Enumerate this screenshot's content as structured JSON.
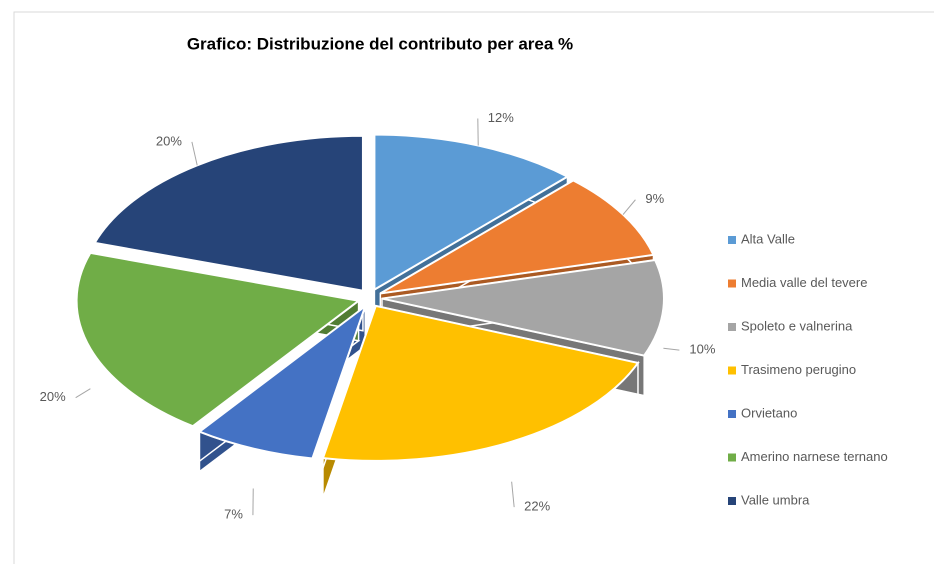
{
  "chart_data": {
    "type": "pie",
    "title": "Grafico: Distribuzione del contributo per area %",
    "categories": [
      "Alta Valle",
      "Media valle del tevere",
      "Spoleto e valnerina",
      "Trasimeno perugino",
      "Orvietano",
      "Amerino narnese ternano",
      "Valle umbra"
    ],
    "values": [
      12,
      9,
      10,
      22,
      7,
      20,
      20
    ],
    "value_labels": [
      "12%",
      "9%",
      "10%",
      "22%",
      "7%",
      "20%",
      "20%"
    ],
    "colors": [
      "#5b9bd5",
      "#ed7d31",
      "#a5a5a5",
      "#ffc000",
      "#4472c4",
      "#70ad47",
      "#264478"
    ],
    "legend": "right"
  }
}
